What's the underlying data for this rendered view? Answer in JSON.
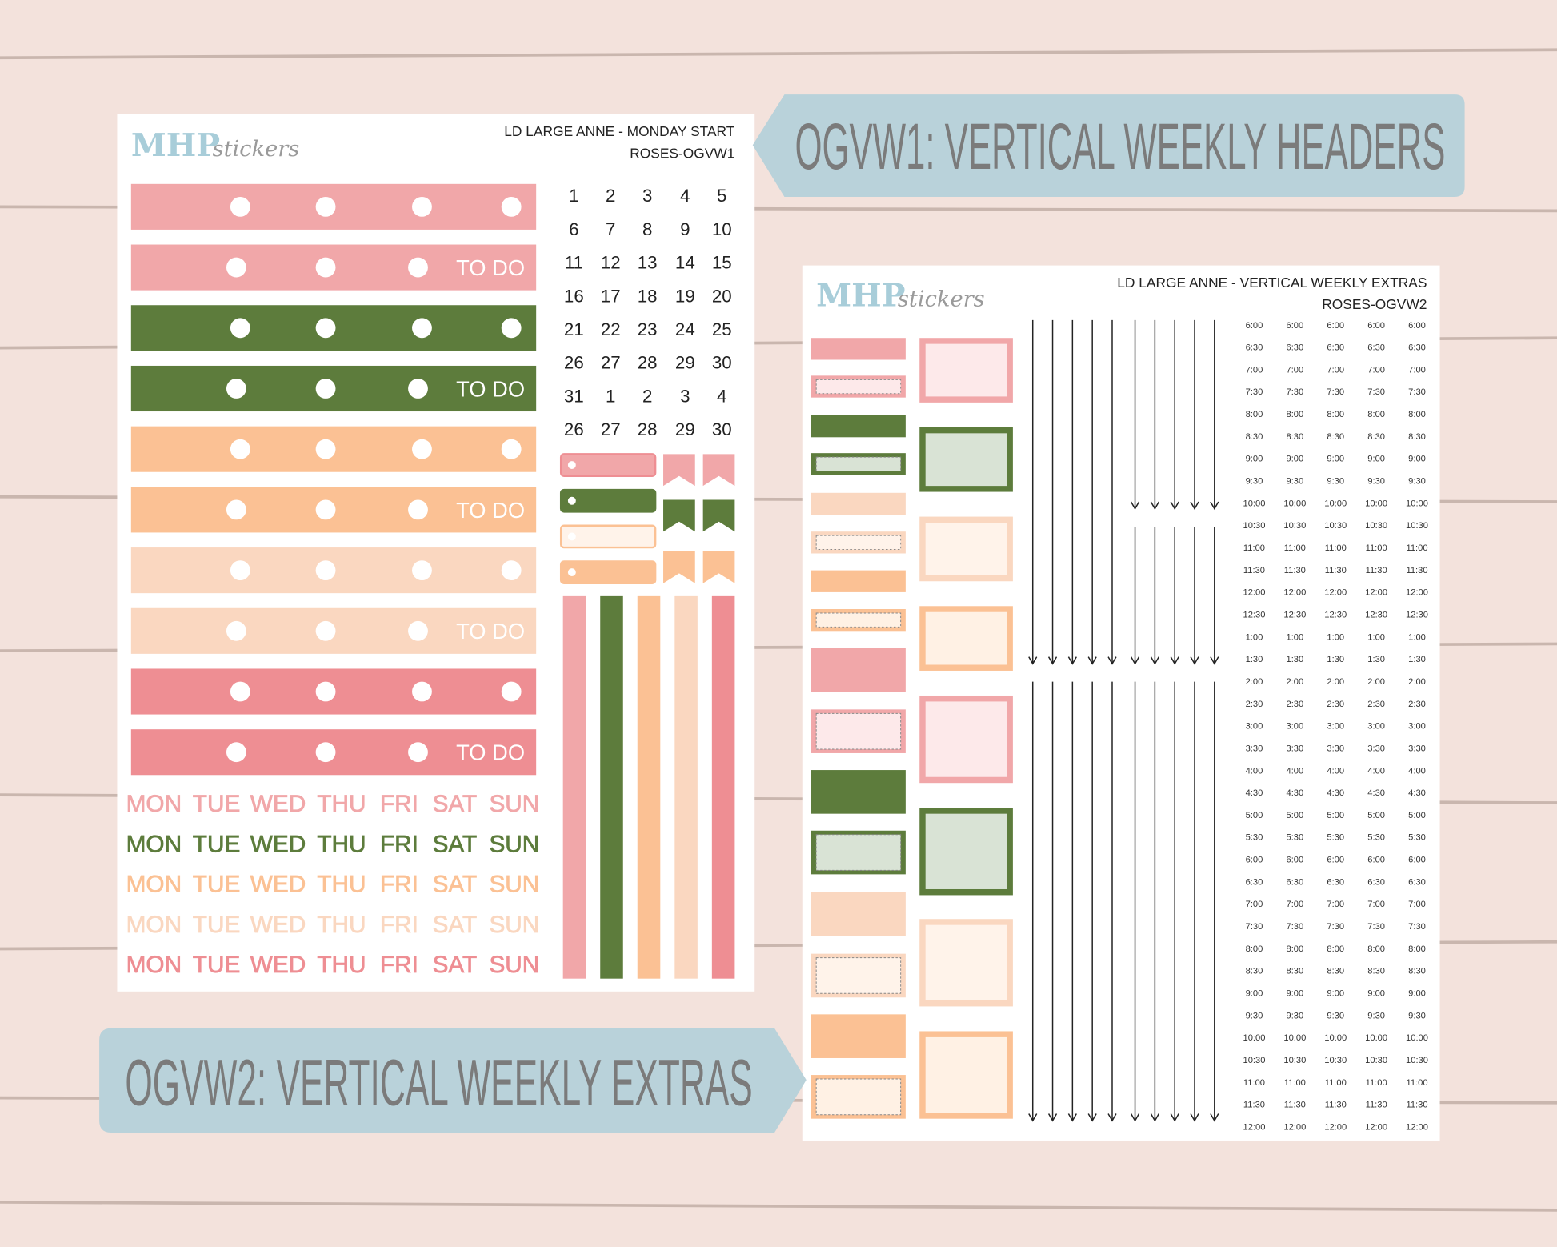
{
  "labels": {
    "sheet1": "OGVW1: VERTICAL WEEKLY HEADERS",
    "sheet2": "OGVW2: VERTICAL WEEKLY EXTRAS"
  },
  "sheet1": {
    "brand": "MHP",
    "brand_suffix": "stickers",
    "title": "LD LARGE ANNE - MONDAY START",
    "code": "ROSES-OGVW1",
    "todo": "TO DO",
    "calendar": [
      [
        "1",
        "2",
        "3",
        "4",
        "5"
      ],
      [
        "6",
        "7",
        "8",
        "9",
        "10"
      ],
      [
        "11",
        "12",
        "13",
        "14",
        "15"
      ],
      [
        "16",
        "17",
        "18",
        "19",
        "20"
      ],
      [
        "21",
        "22",
        "23",
        "24",
        "25"
      ],
      [
        "26",
        "27",
        "28",
        "29",
        "30"
      ],
      [
        "31",
        "1",
        "2",
        "3",
        "4"
      ],
      [
        "26",
        "27",
        "28",
        "29",
        "30"
      ]
    ],
    "weekdays": [
      "MON",
      "TUE",
      "WED",
      "THU",
      "FRI",
      "SAT",
      "SUN"
    ]
  },
  "sheet2": {
    "brand": "MHP",
    "brand_suffix": "stickers",
    "title": "LD LARGE ANNE  - VERTICAL WEEKLY EXTRAS",
    "code": "ROSES-OGVW2",
    "times": [
      "6:00",
      "6:30",
      "7:00",
      "7:30",
      "8:00",
      "8:30",
      "9:00",
      "9:30",
      "10:00",
      "10:30",
      "11:00",
      "11:30",
      "12:00",
      "12:30",
      "1:00",
      "1:30",
      "2:00",
      "2:30",
      "3:00",
      "3:30",
      "4:00",
      "4:30",
      "5:00",
      "5:30",
      "6:00",
      "6:30",
      "7:00",
      "7:30",
      "8:00",
      "8:30",
      "9:00",
      "9:30",
      "10:00",
      "10:30",
      "11:00",
      "11:30",
      "12:00"
    ]
  }
}
